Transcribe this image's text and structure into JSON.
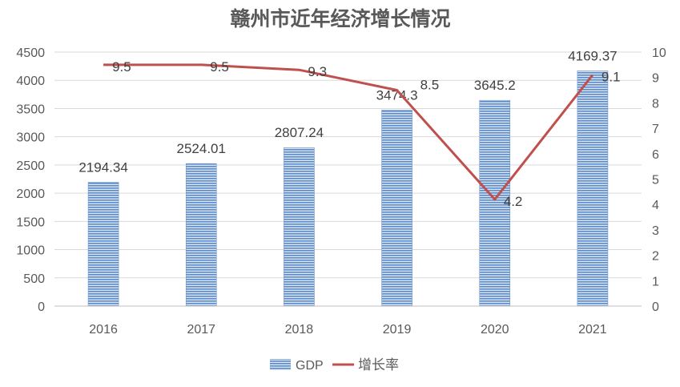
{
  "chart_data": {
    "type": "bar+line",
    "title": "赣州市近年经济增长情况",
    "categories": [
      "2016",
      "2017",
      "2018",
      "2019",
      "2020",
      "2021"
    ],
    "series": [
      {
        "name": "GDP",
        "type": "bar",
        "axis": "left",
        "values": [
          2194.34,
          2524.01,
          2807.24,
          3474.3,
          3645.2,
          4169.37
        ],
        "labels": [
          "2194.34",
          "2524.01",
          "2807.24",
          "3474.3",
          "3645.2",
          "4169.37"
        ],
        "color": "#4F81BD",
        "pattern": "horizontal-stripes"
      },
      {
        "name": "增长率",
        "type": "line",
        "axis": "right",
        "values": [
          9.5,
          9.5,
          9.3,
          8.5,
          4.2,
          9.1
        ],
        "labels": [
          "9.5",
          "9.5",
          "9.3",
          "8.5",
          "4.2",
          "9.1"
        ],
        "color": "#C0504D"
      }
    ],
    "y_left": {
      "range": [
        0,
        4500
      ],
      "ticks": [
        "0",
        "500",
        "1000",
        "1500",
        "2000",
        "2500",
        "3000",
        "3500",
        "4000",
        "4500"
      ]
    },
    "y_right": {
      "range": [
        0,
        10
      ],
      "ticks": [
        "0",
        "1",
        "2",
        "3",
        "4",
        "5",
        "6",
        "7",
        "8",
        "9",
        "10"
      ]
    },
    "grid": true,
    "legend": "bottom"
  }
}
